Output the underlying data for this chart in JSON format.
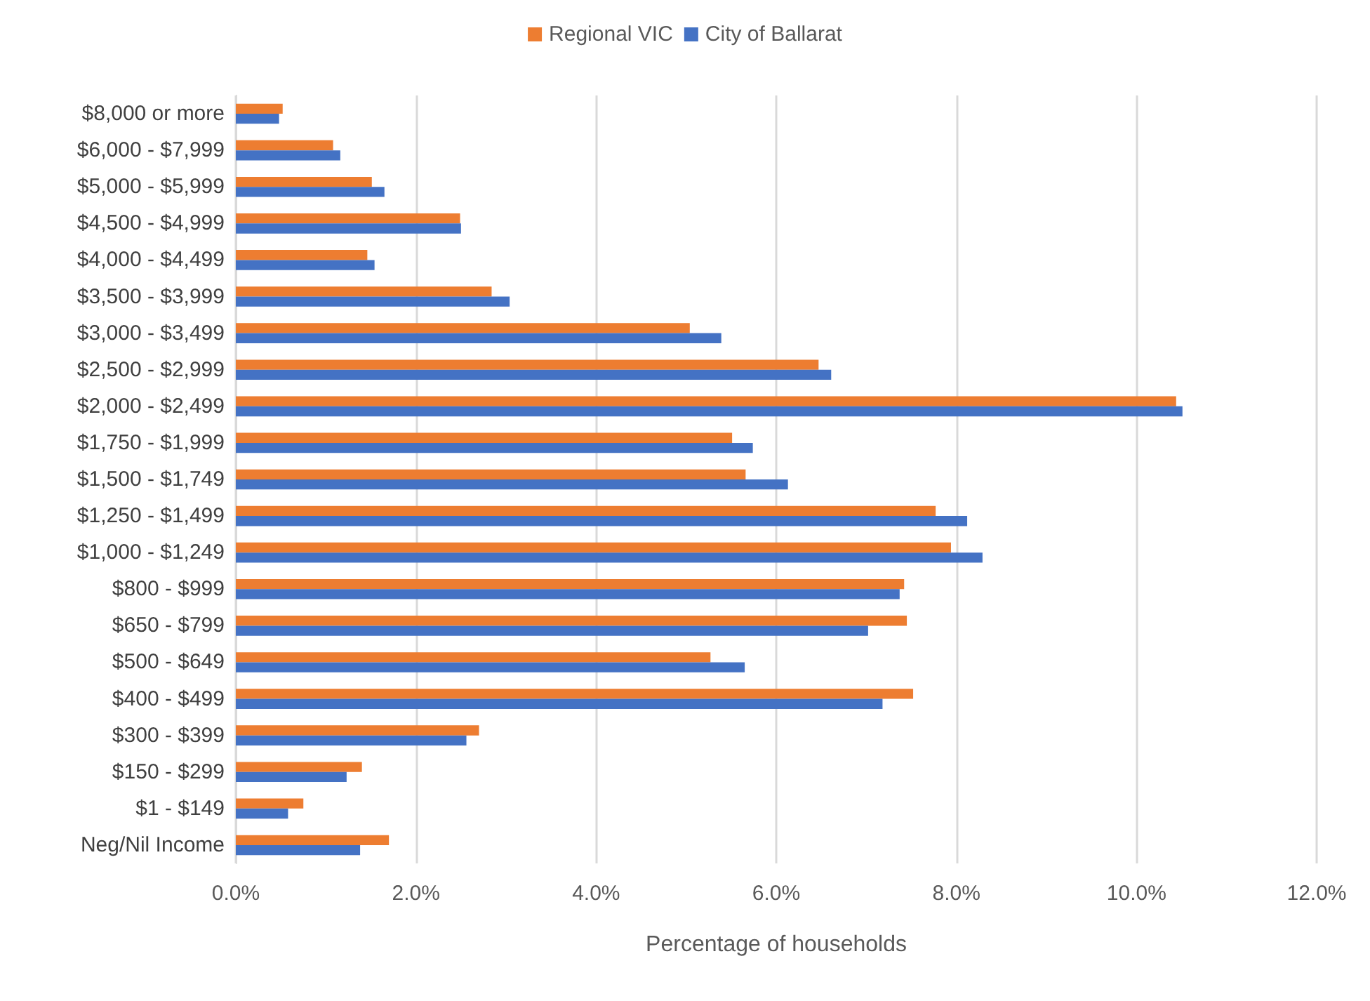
{
  "chart_data": {
    "type": "bar",
    "orientation": "horizontal",
    "xlabel": "Percentage of households",
    "categories": [
      "$8,000 or more",
      "$6,000 - $7,999",
      "$5,000 - $5,999",
      "$4,500 - $4,999",
      "$4,000 - $4,499",
      "$3,500 - $3,999",
      "$3,000 - $3,499",
      "$2,500 - $2,999",
      "$2,000 - $2,499",
      "$1,750 - $1,999",
      "$1,500 - $1,749",
      "$1,250 - $1,499",
      "$1,000 - $1,249",
      "$800 - $999",
      "$650 - $799",
      "$500 - $649",
      "$400 - $499",
      "$300 - $399",
      "$150 - $299",
      "$1 - $149",
      "Neg/Nil Income"
    ],
    "series": [
      {
        "name": "Regional VIC",
        "color": "#ed7d31",
        "values": [
          0.52,
          1.08,
          1.51,
          2.49,
          1.46,
          2.84,
          5.04,
          6.47,
          10.44,
          5.51,
          5.66,
          7.77,
          7.94,
          7.42,
          7.45,
          5.27,
          7.52,
          2.7,
          1.4,
          0.75,
          1.7
        ]
      },
      {
        "name": "City of Ballarat",
        "color": "#4472c4",
        "values": [
          0.48,
          1.16,
          1.65,
          2.5,
          1.54,
          3.04,
          5.39,
          6.61,
          10.51,
          5.74,
          6.13,
          8.12,
          8.29,
          7.37,
          7.02,
          5.65,
          7.18,
          2.56,
          1.23,
          0.58,
          1.38
        ]
      }
    ],
    "xlim": [
      0,
      12
    ],
    "xticks": [
      {
        "value": 0,
        "label": "0.0%"
      },
      {
        "value": 2,
        "label": "2.0%"
      },
      {
        "value": 4,
        "label": "4.0%"
      },
      {
        "value": 6,
        "label": "6.0%"
      },
      {
        "value": 8,
        "label": "8.0%"
      },
      {
        "value": 10,
        "label": "10.0%"
      },
      {
        "value": 12,
        "label": "12.0%"
      }
    ],
    "grid": "x",
    "legend": "top"
  }
}
